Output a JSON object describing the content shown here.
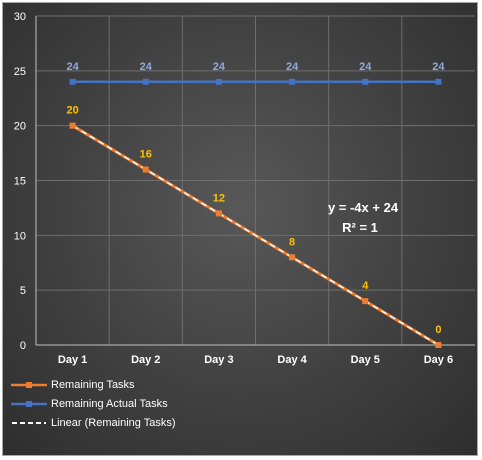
{
  "colors": {
    "remaining": "#ed7d31",
    "actual": "#4472c4",
    "remaining_label": "#ffc000",
    "actual_label": "#8faadc",
    "trend": "#ffffff"
  },
  "chart_data": {
    "type": "line",
    "categories": [
      "Day 1",
      "Day 2",
      "Day 3",
      "Day 4",
      "Day 5",
      "Day 6"
    ],
    "ylim": [
      0,
      30
    ],
    "yticks": [
      0,
      5,
      10,
      15,
      20,
      25,
      30
    ],
    "grid": true,
    "legend_position": "bottom-left",
    "series": [
      {
        "name": "Remaining Tasks",
        "values": [
          20,
          16,
          12,
          8,
          4,
          0
        ]
      },
      {
        "name": "Remaining Actual Tasks",
        "values": [
          24,
          24,
          24,
          24,
          24,
          24
        ]
      }
    ],
    "trendline": {
      "name": "Linear (Remaining Tasks)",
      "equation": "y = -4x + 24",
      "r_squared": "R² = 1"
    }
  }
}
